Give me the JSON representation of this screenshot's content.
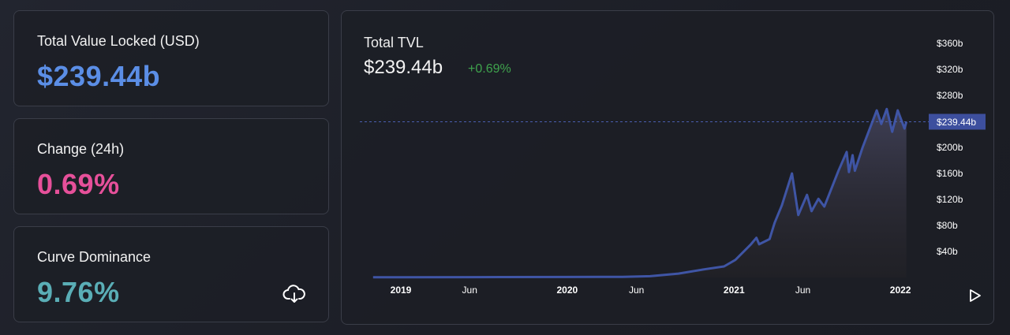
{
  "cards": [
    {
      "label": "Total Value Locked (USD)",
      "value": "$239.44b",
      "color": "#5b8ee6"
    },
    {
      "label": "Change (24h)",
      "value": "0.69%",
      "color": "#e6509a"
    },
    {
      "label": "Curve Dominance",
      "value": "9.76%",
      "color": "#5aaeb6"
    }
  ],
  "icons": {
    "download": "cloud-download-icon",
    "play": "play-icon"
  },
  "chart_data": {
    "type": "area",
    "title": "Total TVL",
    "current_value": "$239.44b",
    "change": "+0.69%",
    "current_label": "$239.44b",
    "current": 239.44,
    "line_color": "#3f55a5",
    "ylim": [
      0,
      380
    ],
    "y_ticks": [
      {
        "v": 40,
        "label": "$40b"
      },
      {
        "v": 80,
        "label": "$80b"
      },
      {
        "v": 120,
        "label": "$120b"
      },
      {
        "v": 160,
        "label": "$160b"
      },
      {
        "v": 200,
        "label": "$200b"
      },
      {
        "v": 240,
        "label": "$240b"
      },
      {
        "v": 280,
        "label": "$280b"
      },
      {
        "v": 320,
        "label": "$320b"
      },
      {
        "v": 360,
        "label": "$360b"
      }
    ],
    "x_ticks": [
      {
        "d": "2019-01-01",
        "label": "2019",
        "bold": true
      },
      {
        "d": "2019-06-01",
        "label": "Jun"
      },
      {
        "d": "2020-01-01",
        "label": "2020",
        "bold": true
      },
      {
        "d": "2020-06-01",
        "label": "Jun"
      },
      {
        "d": "2021-01-01",
        "label": "2021",
        "bold": true
      },
      {
        "d": "2021-06-01",
        "label": "Jun"
      },
      {
        "d": "2022-01-01",
        "label": "2022",
        "bold": true
      }
    ],
    "x": [
      "2018-11-01",
      "2019-06-01",
      "2020-01-01",
      "2020-05-01",
      "2020-07-01",
      "2020-09-01",
      "2020-11-01",
      "2020-12-10",
      "2021-01-04",
      "2021-02-07",
      "2021-02-19",
      "2021-02-25",
      "2021-03-20",
      "2021-03-31",
      "2021-04-16",
      "2021-05-08",
      "2021-05-22",
      "2021-06-10",
      "2021-06-20",
      "2021-07-05",
      "2021-07-18",
      "2021-08-18",
      "2021-09-05",
      "2021-09-10",
      "2021-09-18",
      "2021-09-23",
      "2021-10-10",
      "2021-10-28",
      "2021-11-10",
      "2021-11-20",
      "2021-12-02",
      "2021-12-14",
      "2021-12-26",
      "2022-01-10",
      "2022-01-14"
    ],
    "values": [
      0.3,
      0.5,
      0.7,
      1,
      2,
      6,
      13,
      17,
      27,
      51,
      61,
      51,
      59,
      84,
      111,
      160,
      96,
      127,
      102,
      121,
      109,
      164,
      193,
      162,
      188,
      164,
      200,
      233,
      257,
      236,
      259,
      224,
      257,
      229,
      239.44
    ]
  }
}
